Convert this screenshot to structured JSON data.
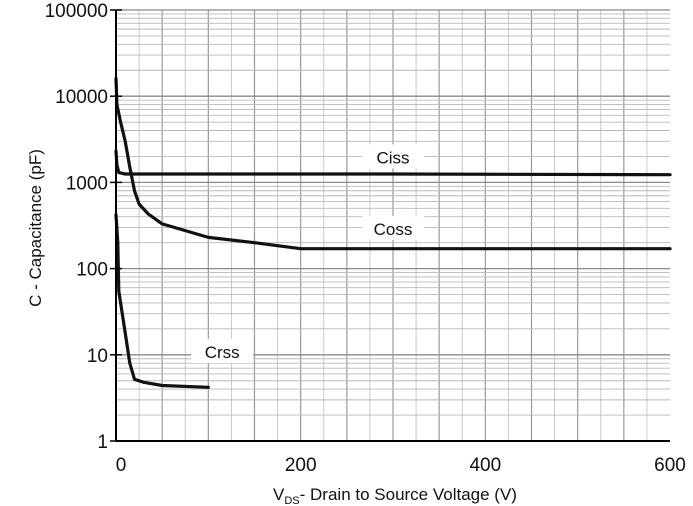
{
  "chart_data": {
    "type": "line",
    "title": "",
    "xlabel": {
      "main": "V",
      "sub": "DS",
      "rest": "- Drain to Source Voltage (V)"
    },
    "ylabel": "C - Capacitance (pF)",
    "xlim": [
      0,
      600
    ],
    "ylim": [
      1,
      100000
    ],
    "y_scale": "log",
    "grid": true,
    "x_ticks": [
      {
        "value": 0,
        "label": "0"
      },
      {
        "value": 200,
        "label": "200"
      },
      {
        "value": 400,
        "label": "400"
      },
      {
        "value": 600,
        "label": "600"
      }
    ],
    "y_ticks": [
      {
        "value": 1,
        "label": "1"
      },
      {
        "value": 10,
        "label": "10"
      },
      {
        "value": 100,
        "label": "100"
      },
      {
        "value": 1000,
        "label": "1000"
      },
      {
        "value": 10000,
        "label": "10000"
      },
      {
        "value": 100000,
        "label": "100000"
      }
    ],
    "series": [
      {
        "name": "Ciss",
        "label_at": [
          300,
          1900
        ],
        "points": [
          [
            0,
            2300
          ],
          [
            1,
            1600
          ],
          [
            3,
            1300
          ],
          [
            10,
            1250
          ],
          [
            100,
            1250
          ],
          [
            300,
            1250
          ],
          [
            600,
            1230
          ]
        ]
      },
      {
        "name": "Coss",
        "label_at": [
          300,
          280
        ],
        "points": [
          [
            0,
            16000
          ],
          [
            1,
            8000
          ],
          [
            5,
            5000
          ],
          [
            10,
            3000
          ],
          [
            15,
            1500
          ],
          [
            20,
            800
          ],
          [
            25,
            560
          ],
          [
            35,
            430
          ],
          [
            50,
            330
          ],
          [
            100,
            230
          ],
          [
            150,
            200
          ],
          [
            200,
            170
          ],
          [
            600,
            170
          ]
        ]
      },
      {
        "name": "Crss",
        "label_at": [
          115,
          10.5
        ],
        "points": [
          [
            0,
            420
          ],
          [
            2,
            200
          ],
          [
            3,
            55
          ],
          [
            5,
            40
          ],
          [
            10,
            18
          ],
          [
            15,
            8
          ],
          [
            20,
            5.2
          ],
          [
            30,
            4.8
          ],
          [
            50,
            4.4
          ],
          [
            100,
            4.2
          ]
        ]
      }
    ]
  }
}
